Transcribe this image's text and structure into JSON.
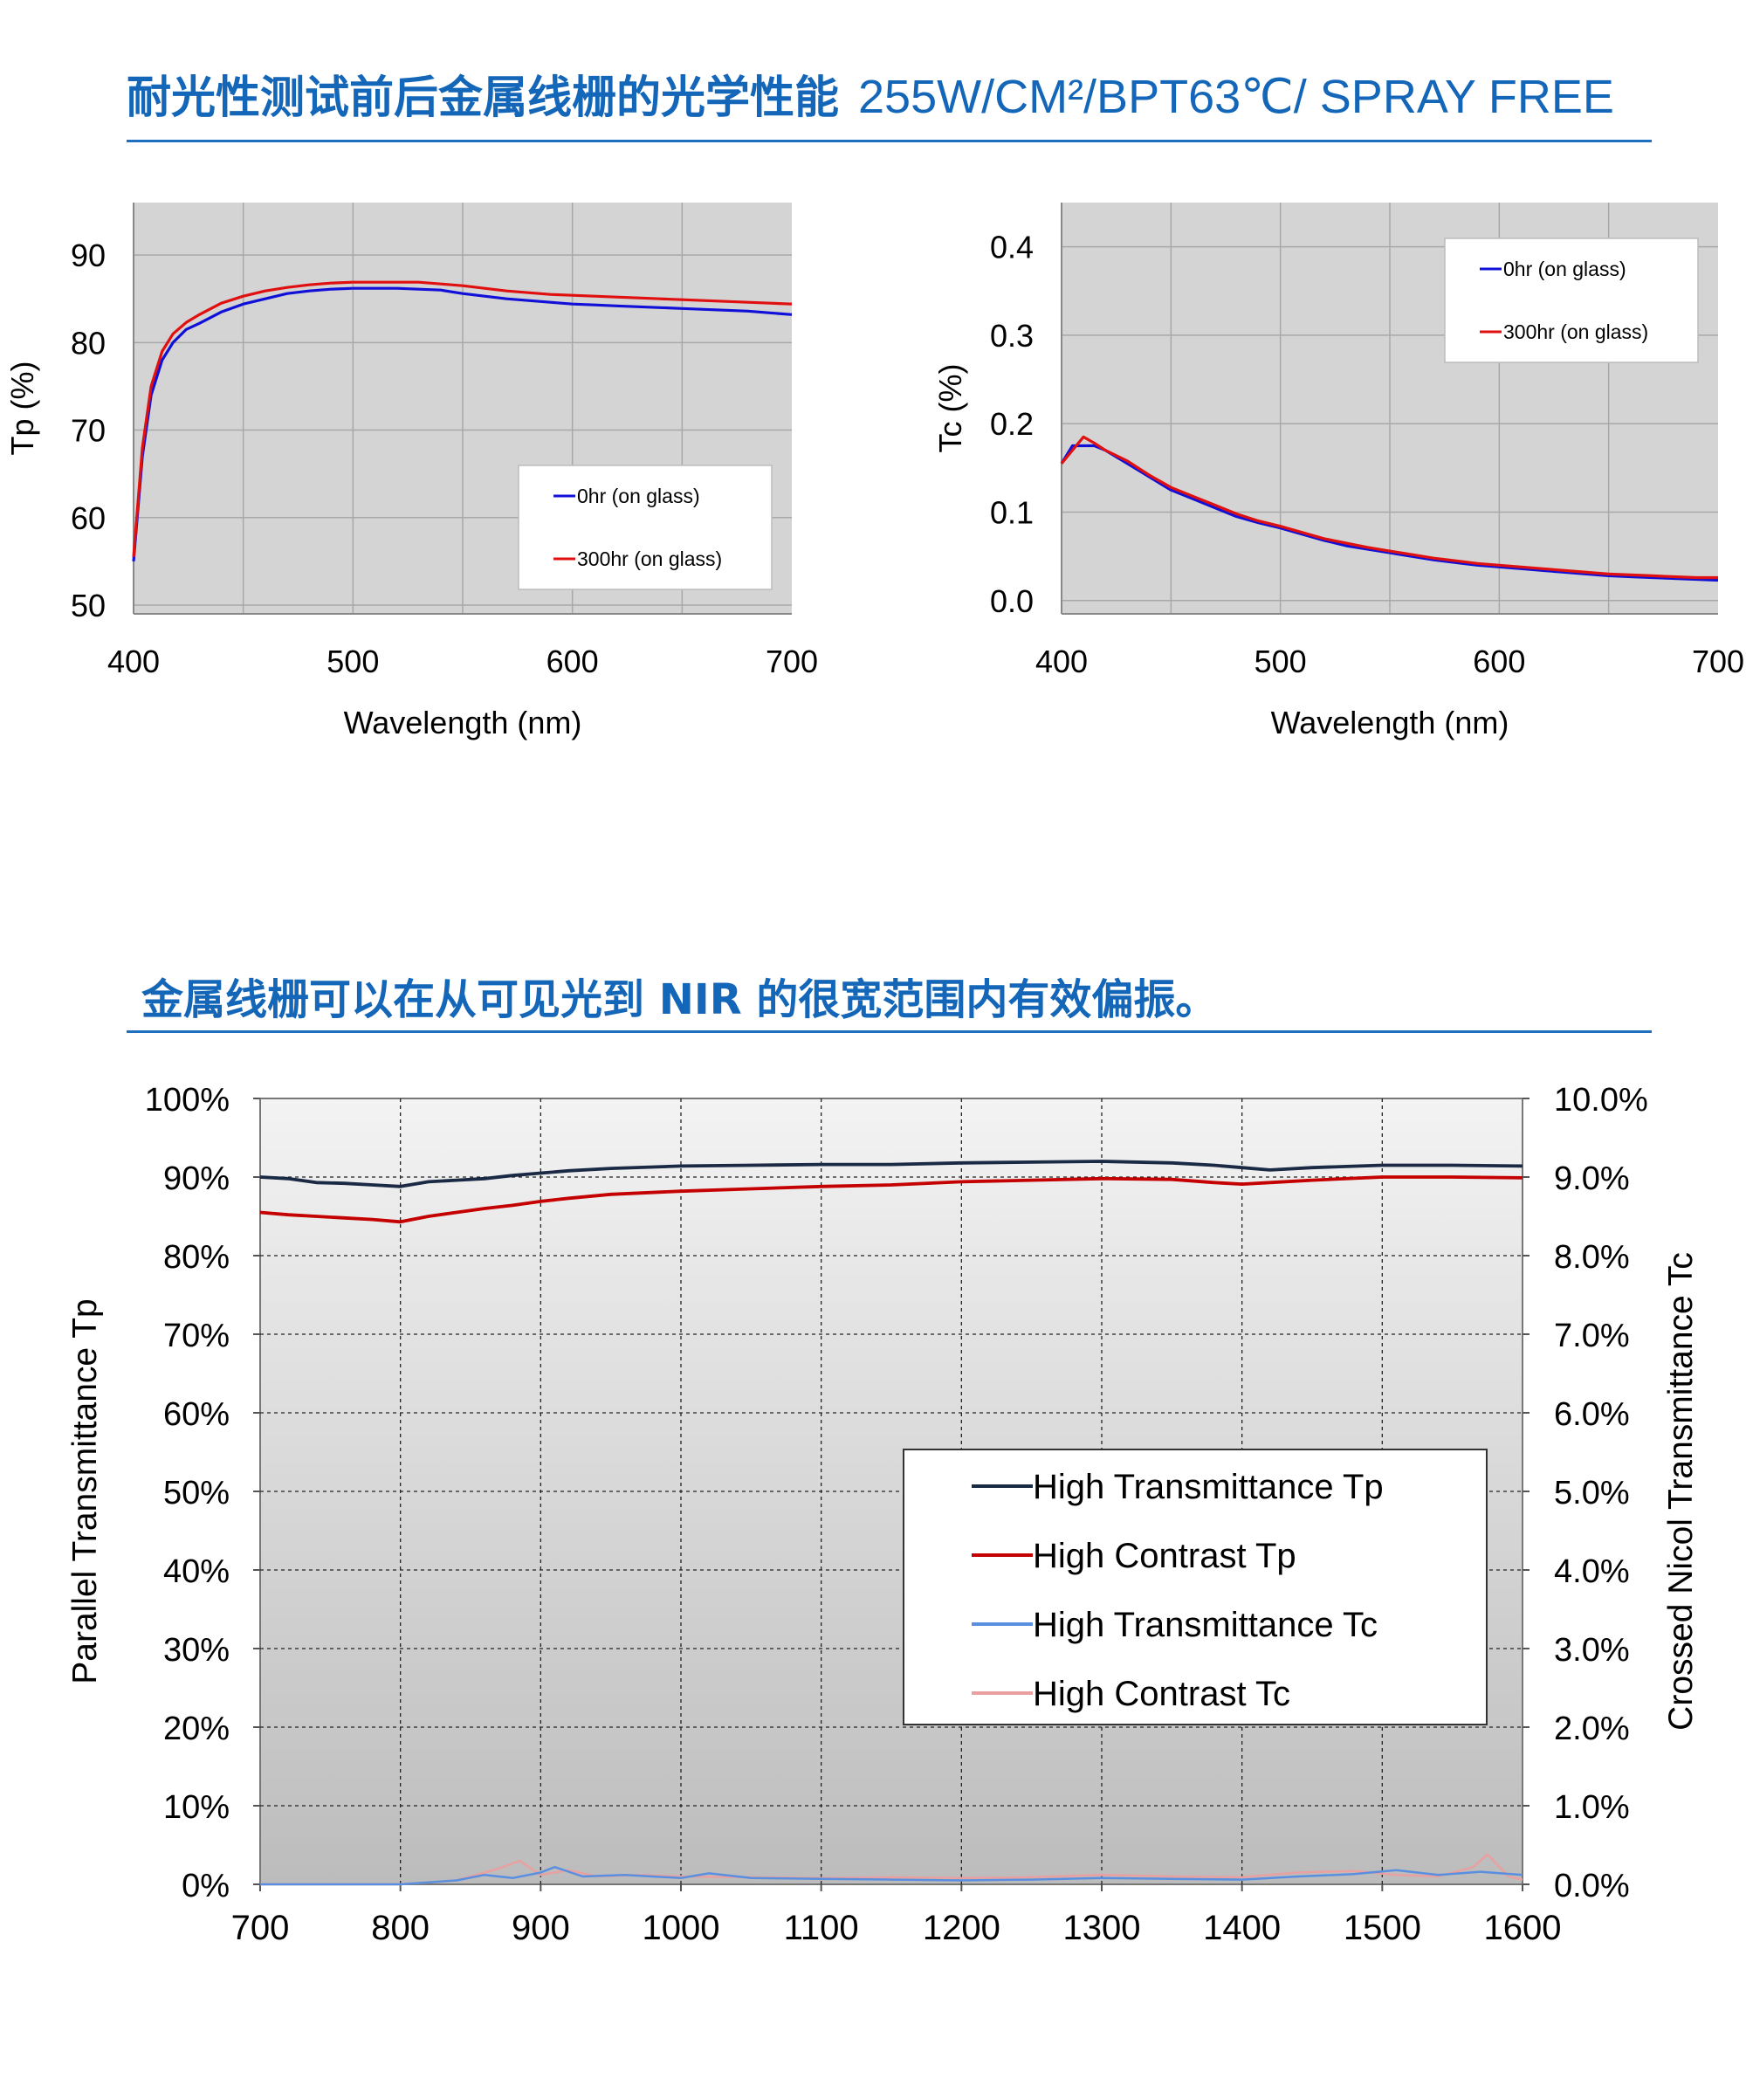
{
  "headings": {
    "top": "耐光性测试前后金属线栅的光学性能",
    "top_sub": "255W/CM²/BPT63℃/ SPRAY FREE",
    "bottom": "金属线栅可以在从可见光到 NIR 的很宽范围内有效偏振。"
  },
  "colors": {
    "heading": "#1466b8",
    "rule": "#1f6fc0",
    "blue_series": "#1010d8",
    "red_series": "#e01010",
    "navy_series": "#1a2a44",
    "darkred_series": "#c40000",
    "lightblue_series": "#5a8fe0",
    "pink_series": "#e8a0a0",
    "plot_bg_top": "#f2f2f2",
    "plot_bg_bottom": "#bdbdbd",
    "small_plot_bg": "#d4d4d4"
  },
  "chart_data": [
    {
      "type": "line",
      "xlabel": "Wavelength (nm)",
      "ylabel": "Tp (%)",
      "xlim": [
        400,
        700
      ],
      "ylim": [
        49,
        96
      ],
      "xticks": [
        400,
        500,
        600,
        700
      ],
      "yticks": [
        50,
        60,
        70,
        80,
        90
      ],
      "grid": true,
      "legend_position": "lower-right",
      "series": [
        {
          "name": "0hr (on glass)",
          "color": "#1010d8",
          "x": [
            400,
            404,
            408,
            413,
            418,
            424,
            430,
            440,
            450,
            460,
            470,
            480,
            490,
            500,
            510,
            520,
            530,
            540,
            550,
            560,
            570,
            580,
            590,
            600,
            610,
            620,
            630,
            640,
            650,
            660,
            670,
            680,
            690,
            700
          ],
          "y": [
            55.0,
            67.0,
            74.0,
            78.0,
            80.0,
            81.5,
            82.2,
            83.5,
            84.4,
            85.0,
            85.6,
            85.9,
            86.1,
            86.2,
            86.2,
            86.2,
            86.1,
            86.0,
            85.6,
            85.3,
            85.0,
            84.8,
            84.6,
            84.4,
            84.3,
            84.2,
            84.1,
            84.0,
            83.9,
            83.8,
            83.7,
            83.6,
            83.4,
            83.2
          ]
        },
        {
          "name": "300hr (on glass)",
          "color": "#e01010",
          "x": [
            400,
            404,
            408,
            413,
            418,
            424,
            430,
            440,
            450,
            460,
            470,
            480,
            490,
            500,
            510,
            520,
            530,
            540,
            550,
            560,
            570,
            580,
            590,
            600,
            610,
            620,
            630,
            640,
            650,
            660,
            670,
            680,
            690,
            700
          ],
          "y": [
            55.5,
            68.0,
            75.0,
            79.0,
            81.0,
            82.3,
            83.2,
            84.5,
            85.3,
            85.9,
            86.3,
            86.6,
            86.8,
            86.9,
            86.9,
            86.9,
            86.9,
            86.7,
            86.5,
            86.2,
            85.9,
            85.7,
            85.5,
            85.4,
            85.3,
            85.2,
            85.1,
            85.0,
            84.9,
            84.8,
            84.7,
            84.6,
            84.5,
            84.4
          ]
        }
      ]
    },
    {
      "type": "line",
      "xlabel": "Wavelength (nm)",
      "ylabel": "Tc (%)",
      "xlim": [
        400,
        700
      ],
      "ylim": [
        -0.015,
        0.45
      ],
      "xticks": [
        400,
        500,
        600,
        700
      ],
      "yticks": [
        "0.0",
        "0.1",
        "0.2",
        "0.3",
        "0.4"
      ],
      "grid": true,
      "legend_position": "top-right",
      "series": [
        {
          "name": "0hr (on glass)",
          "color": "#1010d8",
          "x": [
            400,
            405,
            410,
            415,
            420,
            430,
            440,
            450,
            460,
            470,
            480,
            490,
            500,
            510,
            520,
            530,
            540,
            550,
            560,
            570,
            580,
            590,
            600,
            610,
            620,
            630,
            640,
            650,
            660,
            670,
            680,
            690,
            700
          ],
          "y": [
            0.155,
            0.175,
            0.175,
            0.175,
            0.17,
            0.155,
            0.14,
            0.125,
            0.115,
            0.105,
            0.095,
            0.088,
            0.082,
            0.075,
            0.068,
            0.062,
            0.058,
            0.054,
            0.05,
            0.046,
            0.043,
            0.04,
            0.038,
            0.036,
            0.034,
            0.032,
            0.03,
            0.028,
            0.027,
            0.026,
            0.025,
            0.024,
            0.023
          ]
        },
        {
          "name": "300hr (on glass)",
          "color": "#e01010",
          "x": [
            400,
            405,
            410,
            415,
            420,
            430,
            440,
            450,
            460,
            470,
            480,
            490,
            500,
            510,
            520,
            530,
            540,
            550,
            560,
            570,
            580,
            590,
            600,
            610,
            620,
            630,
            640,
            650,
            660,
            670,
            680,
            690,
            700
          ],
          "y": [
            0.155,
            0.17,
            0.185,
            0.178,
            0.17,
            0.158,
            0.142,
            0.128,
            0.118,
            0.108,
            0.098,
            0.09,
            0.084,
            0.077,
            0.07,
            0.065,
            0.06,
            0.056,
            0.052,
            0.048,
            0.045,
            0.042,
            0.04,
            0.038,
            0.036,
            0.034,
            0.032,
            0.03,
            0.029,
            0.028,
            0.027,
            0.026,
            0.026
          ]
        }
      ]
    },
    {
      "type": "line",
      "xlabel": "",
      "ylabel": "Parallel Transmittance Tp",
      "ylabel_right": "Crossed Nicol Transmittance Tc",
      "xlim": [
        700,
        1600
      ],
      "ylim": [
        0,
        100
      ],
      "ylim_right": [
        0,
        10
      ],
      "xticks": [
        700,
        800,
        900,
        1000,
        1100,
        1200,
        1300,
        1400,
        1500,
        1600
      ],
      "yticks": [
        "0%",
        "10%",
        "20%",
        "30%",
        "40%",
        "50%",
        "60%",
        "70%",
        "80%",
        "90%",
        "100%"
      ],
      "yticks_right": [
        "0.0%",
        "1.0%",
        "2.0%",
        "3.0%",
        "4.0%",
        "5.0%",
        "6.0%",
        "7.0%",
        "8.0%",
        "9.0%",
        "10.0%"
      ],
      "grid": true,
      "legend_position": "center-right",
      "series": [
        {
          "name": "High Transmittance Tp",
          "color": "#1a2a44",
          "axis": "left",
          "x": [
            700,
            720,
            740,
            760,
            780,
            800,
            820,
            840,
            860,
            880,
            900,
            920,
            950,
            1000,
            1050,
            1100,
            1150,
            1200,
            1250,
            1300,
            1350,
            1380,
            1400,
            1420,
            1450,
            1500,
            1550,
            1600
          ],
          "y": [
            90.0,
            89.8,
            89.3,
            89.2,
            89.0,
            88.8,
            89.4,
            89.6,
            89.8,
            90.2,
            90.5,
            90.8,
            91.1,
            91.4,
            91.5,
            91.6,
            91.6,
            91.8,
            91.9,
            92.0,
            91.8,
            91.5,
            91.2,
            90.9,
            91.2,
            91.5,
            91.5,
            91.4
          ]
        },
        {
          "name": "High Contrast Tp",
          "color": "#c40000",
          "axis": "left",
          "x": [
            700,
            720,
            740,
            760,
            780,
            800,
            820,
            840,
            860,
            880,
            900,
            920,
            950,
            1000,
            1050,
            1100,
            1150,
            1200,
            1250,
            1300,
            1350,
            1380,
            1400,
            1420,
            1450,
            1500,
            1550,
            1600
          ],
          "y": [
            85.5,
            85.2,
            85.0,
            84.8,
            84.6,
            84.3,
            85.0,
            85.5,
            86.0,
            86.4,
            86.9,
            87.3,
            87.8,
            88.2,
            88.5,
            88.8,
            89.0,
            89.4,
            89.6,
            89.8,
            89.7,
            89.3,
            89.1,
            89.3,
            89.6,
            90.0,
            90.0,
            89.9
          ]
        },
        {
          "name": "High Transmittance Tc",
          "color": "#5a8fe0",
          "axis": "right",
          "x": [
            700,
            800,
            840,
            860,
            880,
            900,
            910,
            930,
            960,
            1000,
            1020,
            1050,
            1100,
            1150,
            1200,
            1250,
            1300,
            1350,
            1400,
            1440,
            1480,
            1510,
            1540,
            1570,
            1600
          ],
          "y": [
            0.0,
            0.0,
            0.05,
            0.12,
            0.08,
            0.15,
            0.22,
            0.1,
            0.12,
            0.08,
            0.14,
            0.08,
            0.07,
            0.06,
            0.05,
            0.06,
            0.08,
            0.07,
            0.06,
            0.1,
            0.13,
            0.18,
            0.12,
            0.16,
            0.12
          ]
        },
        {
          "name": "High Contrast Tc",
          "color": "#e8a0a0",
          "axis": "right",
          "x": [
            700,
            800,
            840,
            870,
            885,
            900,
            920,
            940,
            970,
            1000,
            1050,
            1100,
            1150,
            1200,
            1250,
            1300,
            1350,
            1400,
            1440,
            1480,
            1510,
            1540,
            1565,
            1575,
            1590,
            1600
          ],
          "y": [
            0.0,
            0.0,
            0.05,
            0.2,
            0.3,
            0.12,
            0.18,
            0.1,
            0.12,
            0.1,
            0.09,
            0.08,
            0.09,
            0.08,
            0.09,
            0.12,
            0.1,
            0.09,
            0.15,
            0.17,
            0.12,
            0.1,
            0.22,
            0.38,
            0.1,
            0.06
          ]
        }
      ]
    }
  ]
}
